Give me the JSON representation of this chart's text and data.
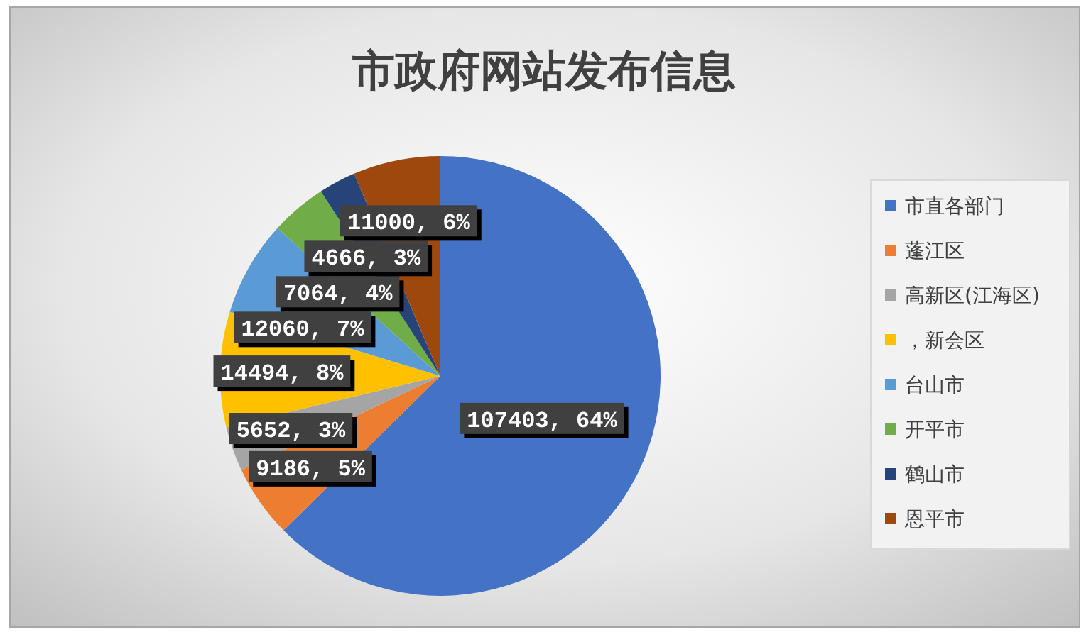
{
  "chart_data": {
    "type": "pie",
    "title": "市政府网站发布信息",
    "categories": [
      "市直各部门",
      "蓬江区",
      "高新区(江海区)",
      "，新会区",
      "台山市",
      "开平市",
      "鹤山市",
      "恩平市"
    ],
    "values": [
      107403,
      9186,
      5652,
      14494,
      12060,
      7064,
      4666,
      11000
    ],
    "colors": [
      "#4472c4",
      "#ed7d31",
      "#a5a5a5",
      "#ffc000",
      "#5b9bd5",
      "#70ad47",
      "#264478",
      "#9e480e"
    ],
    "value_labels": [
      "107403, 64%",
      "9186, 5%",
      "5652, 3%",
      "14494, 8%",
      "12060, 7%",
      "7064, 4%",
      "4666, 3%",
      "11000, 6%"
    ],
    "legend": "right"
  }
}
